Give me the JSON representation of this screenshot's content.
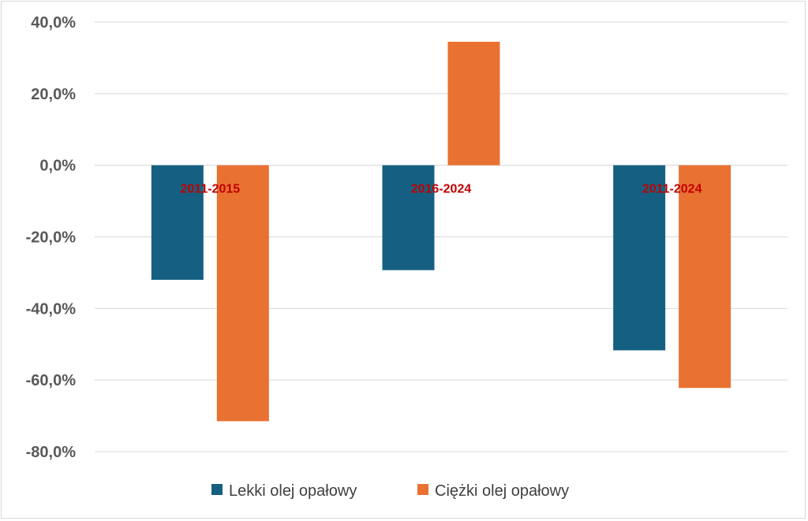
{
  "chart_data": {
    "type": "bar",
    "categories": [
      "2011-2015",
      "2016-2024",
      "2011-2024"
    ],
    "series": [
      {
        "name": "Lekki olej opałowy",
        "color": "#156082",
        "values": [
          -32.0,
          -29.3,
          -51.7
        ]
      },
      {
        "name": "Ciężki olej opałowy",
        "color": "#E97132",
        "values": [
          -71.5,
          34.5,
          -62.2
        ]
      }
    ],
    "ylim": [
      -80,
      40
    ],
    "yticks": [
      40,
      20,
      0,
      -20,
      -40,
      -60,
      -80
    ],
    "ytick_labels": [
      "40,0%",
      "20,0%",
      "0,0%",
      "-20,0%",
      "-40,0%",
      "-60,0%",
      "-80,0%"
    ],
    "category_label_color": "#C00000",
    "grid": true,
    "legend": "bottom"
  }
}
